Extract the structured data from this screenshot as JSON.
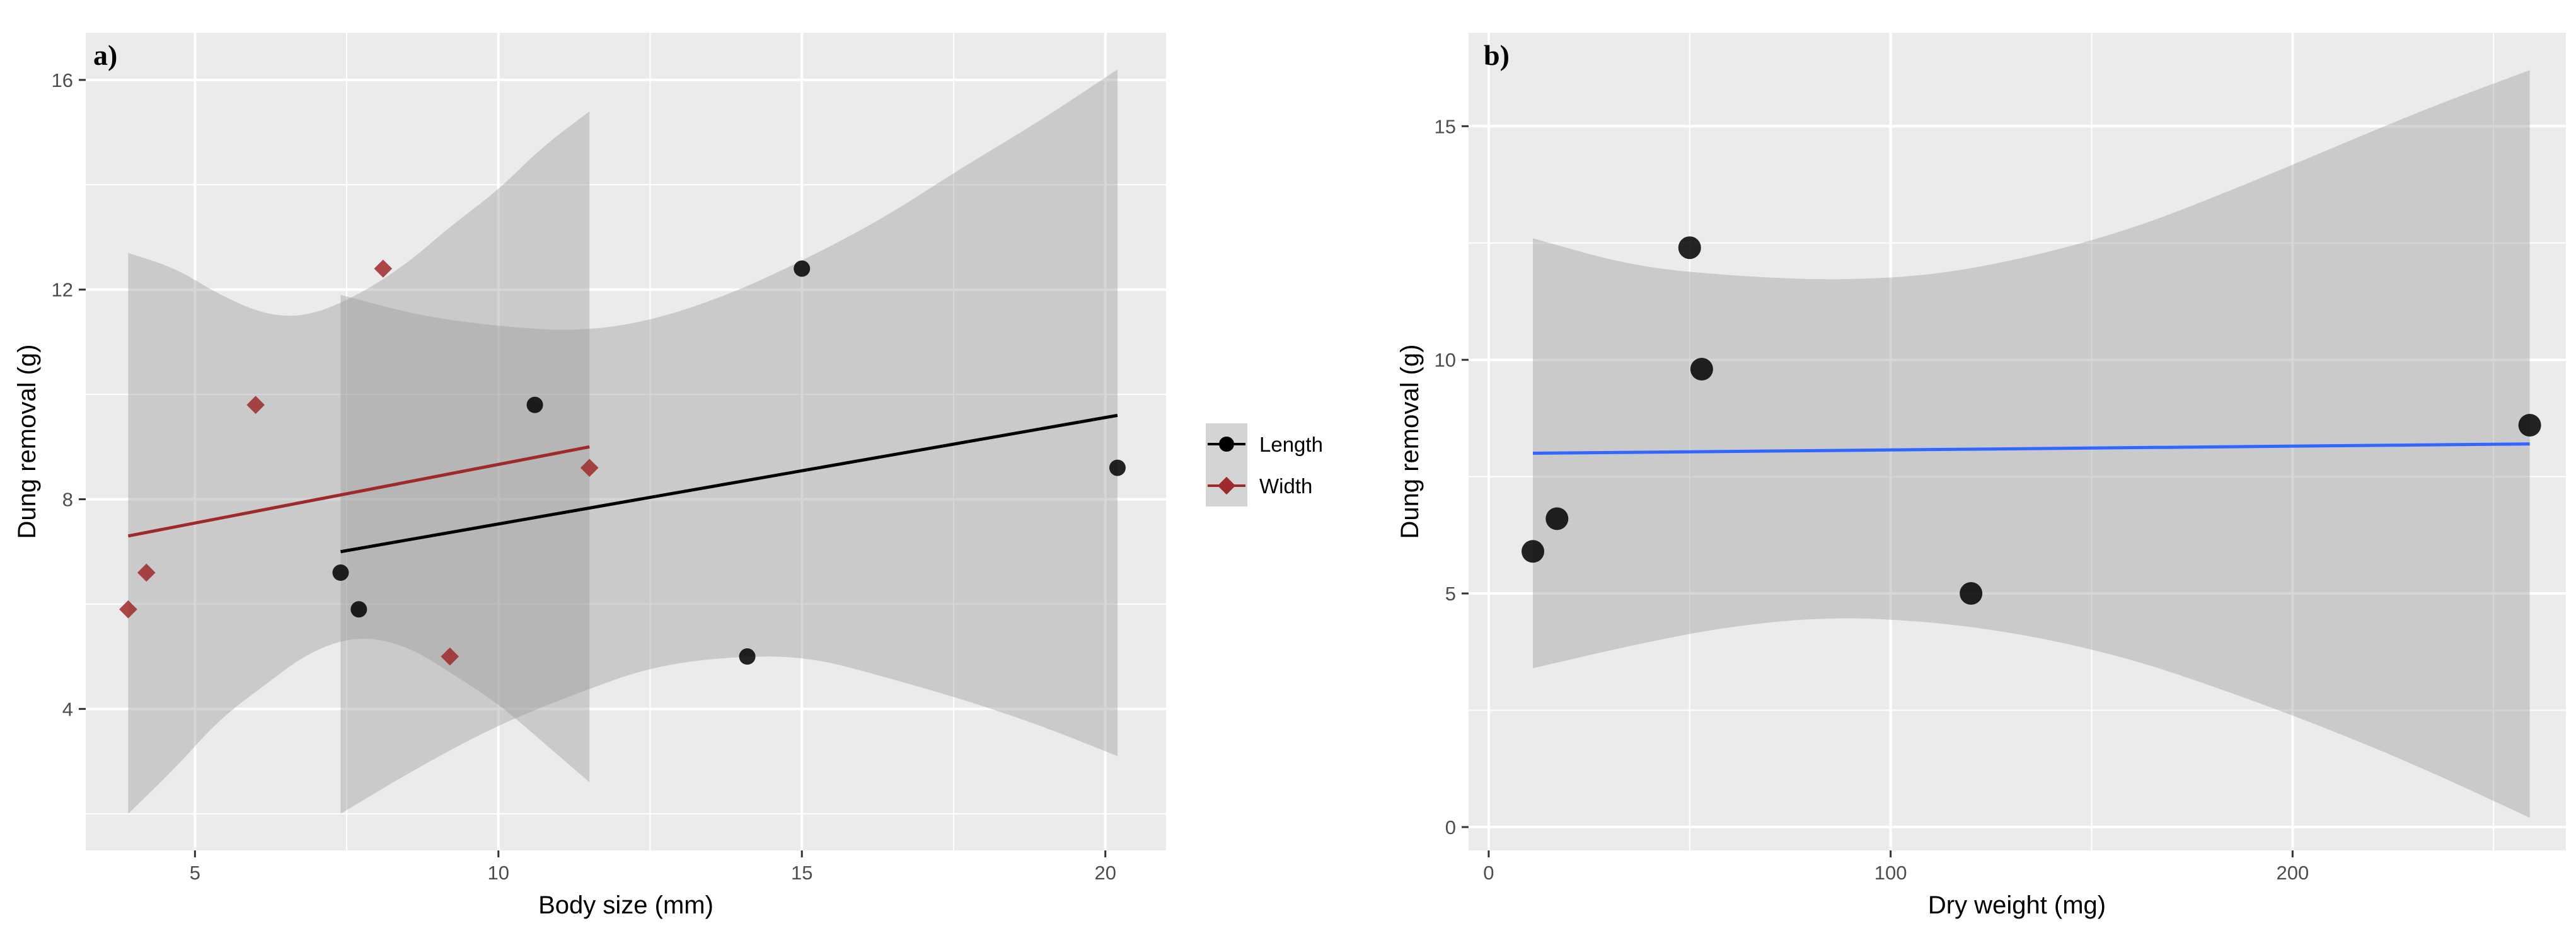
{
  "chart_data": [
    {
      "type": "scatter",
      "panel_label": "a)",
      "xlabel": "Body size (mm)",
      "ylabel": "Dung removal (g)",
      "xlim": [
        3.2,
        21.0
      ],
      "ylim": [
        1.3,
        16.9
      ],
      "x_ticks": [
        5,
        10,
        15,
        20
      ],
      "x_tick_labels": [
        "5",
        "10",
        "15",
        "20"
      ],
      "y_ticks": [
        4,
        8,
        12,
        16
      ],
      "y_tick_labels": [
        "4",
        "8",
        "12",
        "16"
      ],
      "grid": true,
      "legend_position": "right",
      "series": [
        {
          "name": "Length",
          "color": "#000000",
          "marker": "circle",
          "points": [
            [
              7.4,
              6.6
            ],
            [
              7.7,
              5.9
            ],
            [
              10.6,
              9.8
            ],
            [
              14.1,
              5.0
            ],
            [
              15.0,
              12.4
            ],
            [
              20.2,
              8.6
            ]
          ],
          "fit": {
            "x0": 7.4,
            "y0": 7.0,
            "x1": 20.2,
            "y1": 9.6
          },
          "ci_upper": [
            [
              7.4,
              11.9
            ],
            [
              8.7,
              11.5
            ],
            [
              10.0,
              11.3
            ],
            [
              11.3,
              11.2
            ],
            [
              12.5,
              11.4
            ],
            [
              13.8,
              11.9
            ],
            [
              15.1,
              12.6
            ],
            [
              16.4,
              13.4
            ],
            [
              17.6,
              14.3
            ],
            [
              18.9,
              15.2
            ],
            [
              20.2,
              16.2
            ]
          ],
          "ci_lower": [
            [
              7.4,
              2.0
            ],
            [
              8.7,
              2.9
            ],
            [
              10.0,
              3.7
            ],
            [
              11.3,
              4.3
            ],
            [
              12.5,
              4.8
            ],
            [
              13.8,
              5.0
            ],
            [
              15.1,
              5.0
            ],
            [
              16.4,
              4.6
            ],
            [
              17.6,
              4.2
            ],
            [
              18.9,
              3.7
            ],
            [
              20.2,
              3.1
            ]
          ]
        },
        {
          "name": "Width",
          "color": "#9e2a2b",
          "marker": "diamond",
          "points": [
            [
              3.9,
              5.9
            ],
            [
              4.2,
              6.6
            ],
            [
              6.0,
              9.8
            ],
            [
              8.1,
              12.4
            ],
            [
              9.2,
              5.0
            ],
            [
              11.5,
              8.6
            ]
          ],
          "fit": {
            "x0": 3.9,
            "y0": 7.3,
            "x1": 11.5,
            "y1": 9.0
          },
          "ci_upper": [
            [
              3.9,
              12.7
            ],
            [
              4.7,
              12.4
            ],
            [
              5.4,
              11.9
            ],
            [
              6.2,
              11.5
            ],
            [
              6.9,
              11.5
            ],
            [
              7.7,
              11.9
            ],
            [
              8.5,
              12.5
            ],
            [
              9.2,
              13.2
            ],
            [
              10.0,
              13.9
            ],
            [
              10.7,
              14.7
            ],
            [
              11.5,
              15.4
            ]
          ],
          "ci_lower": [
            [
              3.9,
              2.0
            ],
            [
              4.7,
              2.9
            ],
            [
              5.4,
              3.8
            ],
            [
              6.2,
              4.5
            ],
            [
              6.9,
              5.1
            ],
            [
              7.7,
              5.4
            ],
            [
              8.5,
              5.2
            ],
            [
              9.2,
              4.7
            ],
            [
              10.0,
              4.1
            ],
            [
              10.7,
              3.4
            ],
            [
              11.5,
              2.6
            ]
          ]
        }
      ]
    },
    {
      "type": "scatter",
      "panel_label": "b)",
      "xlabel": "Dry weight (mg)",
      "ylabel": "Dung removal (g)",
      "xlim": [
        -5,
        268
      ],
      "ylim": [
        -0.5,
        17.0
      ],
      "x_ticks": [
        0,
        100,
        200
      ],
      "x_tick_labels": [
        "0",
        "100",
        "200"
      ],
      "y_ticks": [
        0,
        5,
        10,
        15
      ],
      "y_tick_labels": [
        "0",
        "5",
        "10",
        "15"
      ],
      "grid": true,
      "series": [
        {
          "name": "Dung removal",
          "color": "#000000",
          "fit_color": "#3366ff",
          "marker": "circle",
          "points": [
            [
              11,
              5.9
            ],
            [
              17,
              6.6
            ],
            [
              50,
              12.4
            ],
            [
              53,
              9.8
            ],
            [
              120,
              5.0
            ],
            [
              259,
              8.6
            ]
          ],
          "fit": {
            "x0": 11,
            "y0": 8.0,
            "x1": 259,
            "y1": 8.2
          },
          "ci_upper": [
            [
              11,
              12.6
            ],
            [
              36,
              12.0
            ],
            [
              60,
              11.8
            ],
            [
              85,
              11.7
            ],
            [
              110,
              11.8
            ],
            [
              135,
              12.2
            ],
            [
              160,
              12.8
            ],
            [
              184,
              13.6
            ],
            [
              209,
              14.5
            ],
            [
              234,
              15.4
            ],
            [
              259,
              16.2
            ]
          ],
          "ci_lower": [
            [
              11,
              3.4
            ],
            [
              36,
              3.9
            ],
            [
              60,
              4.3
            ],
            [
              85,
              4.5
            ],
            [
              110,
              4.4
            ],
            [
              135,
              4.1
            ],
            [
              160,
              3.6
            ],
            [
              184,
              2.9
            ],
            [
              209,
              2.1
            ],
            [
              234,
              1.2
            ],
            [
              259,
              0.2
            ]
          ]
        }
      ]
    }
  ]
}
